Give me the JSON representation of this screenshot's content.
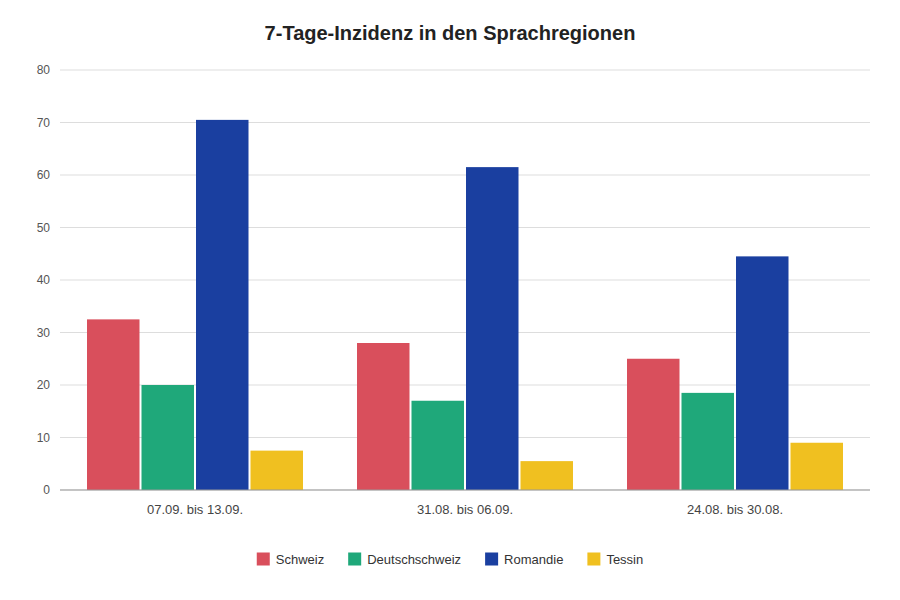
{
  "chart_data": {
    "type": "bar",
    "title": "7-Tage-Inzidenz in den Sprachregionen",
    "categories": [
      "07.09. bis 13.09.",
      "31.08. bis 06.09.",
      "24.08. bis 30.08."
    ],
    "series": [
      {
        "name": "Schweiz",
        "color": "#d94f5c",
        "values": [
          32.5,
          28.0,
          25.0
        ]
      },
      {
        "name": "Deutschschweiz",
        "color": "#1fa87a",
        "values": [
          20.0,
          17.0,
          18.5
        ]
      },
      {
        "name": "Romandie",
        "color": "#1a3fa0",
        "values": [
          70.5,
          61.5,
          44.5
        ]
      },
      {
        "name": "Tessin",
        "color": "#f0c020",
        "values": [
          7.5,
          5.5,
          9.0
        ]
      }
    ],
    "ylim": [
      0,
      80
    ],
    "yticks": [
      0,
      10,
      20,
      30,
      40,
      50,
      60,
      70,
      80
    ],
    "grid": true,
    "legend": "bottom"
  }
}
